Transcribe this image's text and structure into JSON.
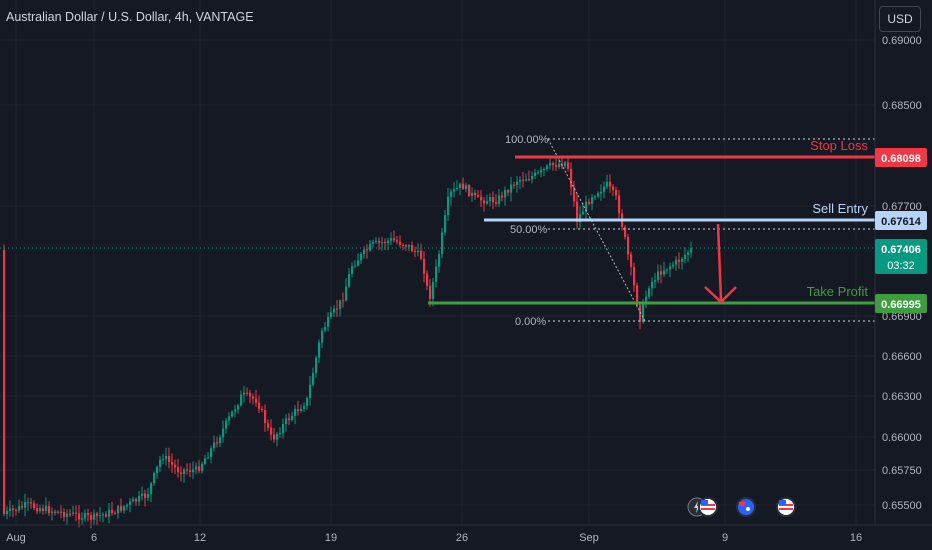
{
  "header": {
    "title": "Australian Dollar / U.S. Dollar, 4h, VANTAGE",
    "currency_button": "USD"
  },
  "chart_data": {
    "type": "candlestick",
    "title": "Australian Dollar / U.S. Dollar, 4h, VANTAGE",
    "y_ticks": [
      "0.69000",
      "0.68500",
      "0.67700",
      "0.66900",
      "0.66600",
      "0.66300",
      "0.66000",
      "0.65750",
      "0.65500"
    ],
    "x_ticks": [
      "Aug",
      "6",
      "12",
      "19",
      "26",
      "Sep",
      "9",
      "16"
    ],
    "levels": {
      "stop_loss": {
        "label": "Stop Loss",
        "value": "0.68098",
        "color": "#f23645"
      },
      "sell_entry": {
        "label": "Sell Entry",
        "value": "0.67614",
        "color": "#b7d3f5"
      },
      "take_profit": {
        "label": "Take Profit",
        "value": "0.66995",
        "color": "#3e9d3e"
      }
    },
    "fib": {
      "levels": [
        "100.00%",
        "50.00%",
        "0.00%"
      ]
    },
    "current_price": {
      "value": "0.67406",
      "countdown": "03:32",
      "color": "#089981"
    },
    "up_color": "#089981",
    "down_color": "#f23645"
  }
}
